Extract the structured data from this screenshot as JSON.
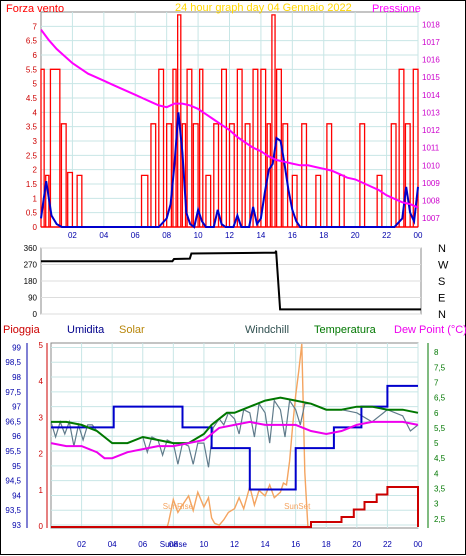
{
  "chart_data": [
    {
      "type": "line",
      "title": "24 hour graph day  04 Gennaio 2022",
      "left_label": "Forza vento",
      "right_label": "Pressione",
      "x_ticks": [
        "02",
        "04",
        "06",
        "08",
        "10",
        "12",
        "14",
        "16",
        "18",
        "20",
        "22",
        "00"
      ],
      "y_left_ticks": [
        "0",
        "0.5",
        "1",
        "1.5",
        "2",
        "2.5",
        "3",
        "3.5",
        "4",
        "4.5",
        "5",
        "5.5",
        "6",
        "6.5",
        "7"
      ],
      "y_right_ticks": [
        "1007",
        "1008",
        "1009",
        "1010",
        "1011",
        "1012",
        "1013",
        "1014",
        "1015",
        "1016",
        "1017",
        "1018"
      ],
      "ylim_left": [
        0,
        7.5
      ],
      "ylim_right": [
        1006.5,
        1018.7
      ],
      "colors": {
        "gust": "#ff0000",
        "wind": "#0000cc",
        "pressure": "#ff00ff",
        "title": "#ffd700"
      },
      "series": [
        {
          "name": "Pressione",
          "x": [
            0,
            0.5,
            1,
            1.5,
            2,
            2.5,
            3,
            3.5,
            4,
            4.5,
            5,
            5.5,
            6,
            6.5,
            7,
            7.5,
            8,
            8.5,
            9,
            9.5,
            10,
            10.5,
            11,
            11.5,
            12,
            12.5,
            13,
            13.5,
            14,
            14.5,
            15,
            15.5,
            16,
            16.5,
            17,
            17.5,
            18,
            18.5,
            19,
            19.5,
            20,
            20.5,
            21,
            21.5,
            22,
            22.5,
            23,
            23.5,
            24
          ],
          "values": [
            1017.7,
            1017.1,
            1016.6,
            1016.2,
            1015.8,
            1015.5,
            1015.2,
            1015.0,
            1014.8,
            1014.6,
            1014.4,
            1014.2,
            1014.0,
            1013.8,
            1013.6,
            1013.4,
            1013.3,
            1013.5,
            1013.5,
            1013.4,
            1013.2,
            1012.9,
            1012.6,
            1012.3,
            1012.0,
            1011.6,
            1011.3,
            1011.0,
            1010.8,
            1010.5,
            1010.3,
            1010.2,
            1010.1,
            1010.0,
            1010.0,
            1009.9,
            1009.8,
            1009.7,
            1009.5,
            1009.3,
            1009.2,
            1009.0,
            1008.8,
            1008.6,
            1008.3,
            1008.1,
            1007.9,
            1007.8,
            1007.6
          ]
        },
        {
          "name": "Forza vento",
          "x": [
            0,
            0.33,
            0.67,
            1,
            1.33,
            1.67,
            2,
            2.5,
            3,
            3.5,
            4,
            4.5,
            5,
            5.5,
            6,
            6.5,
            7,
            7.5,
            8,
            8.25,
            8.5,
            8.75,
            9,
            9.25,
            9.5,
            9.75,
            10,
            10.25,
            10.5,
            10.75,
            11,
            11.25,
            11.5,
            11.75,
            12,
            12.25,
            12.5,
            12.75,
            13,
            13.25,
            13.5,
            13.75,
            14,
            14.25,
            14.5,
            14.75,
            15,
            15.25,
            15.5,
            15.75,
            16,
            16.25,
            16.5,
            17,
            17.5,
            18,
            18.5,
            19,
            19.5,
            20,
            20.5,
            21,
            21.5,
            22,
            22.5,
            23,
            23.25,
            23.5,
            23.75,
            24
          ],
          "values": [
            0.3,
            1.6,
            0.4,
            0.1,
            0,
            0,
            0,
            0,
            0,
            0,
            0,
            0,
            0,
            0,
            0,
            0,
            0,
            0,
            0.3,
            0.8,
            2.2,
            4.0,
            2.6,
            0.5,
            0.1,
            0,
            0.6,
            0.2,
            0,
            0,
            0,
            0.6,
            0.1,
            0,
            0,
            0,
            0.4,
            0,
            0,
            0,
            0.7,
            0.1,
            0.3,
            1.2,
            2.0,
            2.2,
            3.1,
            3.0,
            2.2,
            1.3,
            0.6,
            0.2,
            0,
            0,
            0,
            0,
            0,
            0,
            0,
            0,
            0,
            0,
            0,
            0,
            0,
            0.3,
            1.4,
            0.5,
            0.2,
            1.4
          ]
        },
        {
          "name": "Raffica",
          "segments": [
            [
              0,
              0.2,
              5.5
            ],
            [
              0.3,
              0.5,
              1.8
            ],
            [
              0.6,
              1.2,
              5.5
            ],
            [
              1.3,
              1.6,
              3.6
            ],
            [
              1.7,
              2.0,
              1.9
            ],
            [
              2.3,
              2.6,
              1.8
            ],
            [
              6.4,
              6.8,
              1.8
            ],
            [
              7.0,
              7.3,
              3.6
            ],
            [
              7.5,
              7.8,
              5.5
            ],
            [
              8.0,
              8.3,
              3.6
            ],
            [
              8.4,
              8.6,
              5.5
            ],
            [
              8.7,
              8.9,
              7.4
            ],
            [
              9.0,
              9.2,
              3.6
            ],
            [
              9.3,
              9.6,
              5.5
            ],
            [
              9.7,
              10.0,
              3.6
            ],
            [
              10.1,
              10.3,
              5.5
            ],
            [
              10.5,
              10.8,
              1.8
            ],
            [
              11.0,
              11.3,
              3.6
            ],
            [
              11.5,
              11.8,
              5.5
            ],
            [
              12.0,
              12.3,
              3.6
            ],
            [
              12.5,
              12.8,
              5.5
            ],
            [
              13.0,
              13.3,
              3.6
            ],
            [
              13.5,
              13.8,
              5.5
            ],
            [
              14.0,
              14.3,
              5.5
            ],
            [
              14.4,
              14.6,
              3.6
            ],
            [
              14.7,
              14.9,
              7.4
            ],
            [
              15.0,
              15.3,
              5.5
            ],
            [
              15.4,
              15.7,
              3.6
            ],
            [
              16.0,
              16.3,
              1.8
            ],
            [
              16.6,
              16.9,
              3.6
            ],
            [
              17.5,
              17.8,
              1.8
            ],
            [
              18.2,
              18.5,
              3.6
            ],
            [
              19.0,
              19.3,
              1.8
            ],
            [
              20.3,
              20.6,
              3.6
            ],
            [
              21.4,
              21.7,
              1.8
            ],
            [
              22.3,
              22.6,
              3.6
            ],
            [
              22.8,
              23.1,
              5.5
            ],
            [
              23.2,
              23.5,
              3.6
            ],
            [
              23.7,
              24.0,
              5.5
            ]
          ]
        }
      ]
    },
    {
      "type": "line",
      "title": "",
      "y_ticks": [
        "360",
        "270",
        "180",
        "90",
        "0"
      ],
      "dir_labels": [
        "N",
        "W",
        "S",
        "E",
        "N"
      ],
      "ylim": [
        0,
        360
      ],
      "series": [
        {
          "name": "Direzione vento",
          "x": [
            0,
            8.3,
            8.4,
            9.4,
            9.5,
            14.8,
            14.85,
            15.1,
            24
          ],
          "values": [
            288,
            288,
            300,
            302,
            330,
            335,
            345,
            25,
            25
          ]
        }
      ]
    },
    {
      "type": "line",
      "title": "",
      "labels": {
        "rain": "Pioggia",
        "humidity": "Umidita",
        "solar": "Solar",
        "windchill": "Windchill",
        "temperature": "Temperatura",
        "dewpoint": "Dew Point (°C)"
      },
      "y_left_ticks": [
        "93",
        "93,5",
        "94",
        "94,5",
        "95",
        "95,5",
        "96",
        "96,5",
        "97",
        "97,5",
        "98",
        "98,5",
        "99"
      ],
      "y_right_ticks": [
        "2,5",
        "3",
        "3,5",
        "4",
        "4,5",
        "5",
        "5,5",
        "6",
        "6,5",
        "7",
        "7,5",
        "8"
      ],
      "ylim_left": [
        92.9,
        99.15
      ],
      "ylim_right": [
        2.2,
        8.3
      ],
      "x_ticks": [
        "02",
        "04",
        "06",
        "08",
        "10",
        "12",
        "14",
        "16",
        "18",
        "20",
        "22",
        "00"
      ],
      "annotations": [
        "SunRise",
        "SunSet",
        "Sunrise"
      ],
      "colors": {
        "rain": "#cc0000",
        "humidity": "#0000cc",
        "solar": "#f4a460",
        "windchill": "#607b8b",
        "temperature": "#007700",
        "dewpoint": "#ee00ee"
      },
      "series": [
        {
          "name": "Umidita",
          "x": [
            0,
            4.1,
            4.1,
            8.6,
            8.6,
            10.5,
            10.5,
            13,
            13,
            16,
            16,
            18.5,
            18.5,
            20.3,
            20.3,
            22,
            22,
            24
          ],
          "values": [
            96.3,
            96.3,
            97,
            97,
            96.3,
            96.3,
            95.6,
            95.6,
            94.2,
            94.2,
            95.6,
            95.6,
            96.3,
            96.3,
            97,
            97,
            97.7,
            97.7
          ],
          "axis": "left"
        },
        {
          "name": "Temperatura",
          "x": [
            0,
            1,
            2,
            3,
            4,
            5,
            6,
            7,
            8,
            9,
            10,
            10.5,
            11,
            11.5,
            12,
            13,
            14,
            15,
            16,
            17,
            18,
            19,
            20,
            21,
            22,
            23,
            24
          ],
          "values": [
            5.7,
            5.7,
            5.6,
            5.4,
            5.0,
            5.0,
            5.2,
            5.1,
            5.0,
            5.0,
            5.3,
            5.6,
            5.8,
            6.0,
            6.0,
            6.2,
            6.4,
            6.5,
            6.4,
            6.3,
            6.1,
            6.1,
            6.2,
            6.2,
            6.1,
            6.1,
            6.0
          ],
          "axis": "right"
        },
        {
          "name": "Dew Point (°C)",
          "x": [
            0,
            1,
            2,
            3,
            3.5,
            4,
            5,
            6,
            7,
            8,
            9,
            10,
            10.5,
            11,
            12,
            13,
            14,
            15,
            16,
            17,
            18,
            19,
            20,
            21,
            22,
            23,
            24
          ],
          "values": [
            5.0,
            4.9,
            4.9,
            4.7,
            4.5,
            4.5,
            4.7,
            4.8,
            4.9,
            4.9,
            5.0,
            5.1,
            5.3,
            5.5,
            5.6,
            5.7,
            5.6,
            5.6,
            5.6,
            5.4,
            5.3,
            5.4,
            5.6,
            5.7,
            5.7,
            5.7,
            5.6
          ],
          "axis": "right"
        },
        {
          "name": "Windchill",
          "x": [
            0,
            0.3,
            0.6,
            0.9,
            1.2,
            1.5,
            1.8,
            2.1,
            2.4,
            2.7,
            3,
            4,
            5,
            6,
            6.3,
            6.6,
            7,
            7.3,
            7.6,
            8,
            8.3,
            8.6,
            9,
            9.3,
            9.6,
            10,
            10.3,
            10.6,
            11,
            11.3,
            11.6,
            12,
            12.3,
            12.6,
            13,
            13.3,
            13.6,
            14,
            14.3,
            14.6,
            15,
            15.3,
            15.6,
            16,
            16.3,
            16.6,
            17,
            18,
            19,
            20,
            21,
            22,
            23,
            23.5,
            24
          ],
          "values": [
            5.7,
            5.2,
            5.7,
            5.3,
            5.7,
            4.9,
            5.6,
            5.1,
            5.6,
            5.6,
            5.4,
            5.0,
            5.0,
            5.2,
            4.7,
            5.2,
            5.1,
            4.6,
            5.1,
            5.0,
            4.3,
            5.0,
            4.9,
            4.3,
            5.0,
            5.0,
            4.2,
            5.5,
            5.8,
            5.6,
            6.0,
            5.8,
            5.3,
            6.1,
            6.0,
            5.2,
            6.3,
            6.0,
            5.0,
            6.4,
            6.1,
            5.2,
            6.4,
            6.1,
            5.6,
            6.3,
            6.3,
            6.1,
            6.1,
            6.0,
            5.7,
            6.1,
            5.9,
            5.4,
            5.6
          ],
          "axis": "right"
        },
        {
          "name": "Solar",
          "x": [
            7.6,
            7.7,
            8,
            8.3,
            8.6,
            9,
            9.3,
            9.6,
            10,
            10.3,
            10.5,
            10.7,
            11,
            11.3,
            11.6,
            12,
            12.3,
            12.6,
            13,
            13.3,
            13.6,
            14,
            14.3,
            14.6,
            15,
            15.2,
            15.4,
            15.6,
            15.8,
            16,
            16.2,
            16.4,
            16.6,
            16.8
          ],
          "values": [
            0,
            0.3,
            1.5,
            0.8,
            1.2,
            1.7,
            0.9,
            1.9,
            1.1,
            1.6,
            0.5,
            0.2,
            0.1,
            0.4,
            0.8,
            1.0,
            1.6,
            1.0,
            2.2,
            1.2,
            2.0,
            1.7,
            2.3,
            1.6,
            1.9,
            2.4,
            2.3,
            3.6,
            5.5,
            7.2,
            8.5,
            10.0,
            3.0,
            0
          ],
          "axis": "solar_scale"
        },
        {
          "name": "Pioggia",
          "x": [
            0,
            17,
            17,
            19,
            19,
            19.8,
            19.8,
            20.5,
            20.5,
            21.3,
            21.3,
            22,
            22,
            24,
            24
          ],
          "values": [
            0,
            0,
            0.2,
            0.2,
            0.4,
            0.4,
            0.7,
            0.7,
            1.0,
            1.0,
            1.3,
            1.3,
            1.6,
            1.6,
            0
          ],
          "axis": "rain_scale"
        }
      ]
    }
  ]
}
